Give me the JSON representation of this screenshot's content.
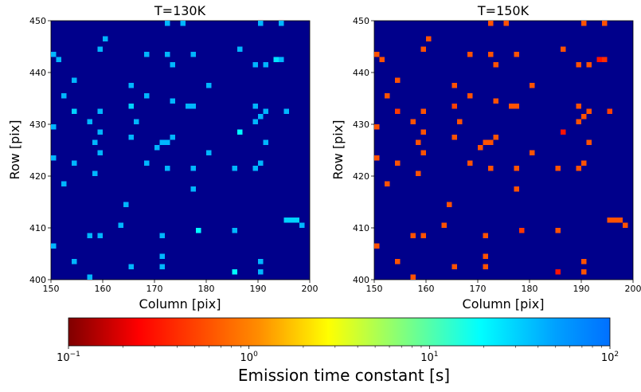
{
  "chart_data": [
    {
      "type": "heatmap",
      "title": "T=130K",
      "xlabel": "Column [pix]",
      "ylabel": "Row [pix]",
      "xlim": [
        150,
        200
      ],
      "ylim": [
        400,
        450
      ],
      "xticks": [
        150,
        160,
        170,
        180,
        190,
        200
      ],
      "yticks": [
        400,
        410,
        420,
        430,
        440,
        450
      ],
      "background": "#00008b",
      "cell_values_note_units": "seconds (emission time constant)",
      "cells": [
        {
          "x": 172,
          "y": 449,
          "v": 40
        },
        {
          "x": 175,
          "y": 449,
          "v": 40
        },
        {
          "x": 190,
          "y": 449,
          "v": 40
        },
        {
          "x": 194,
          "y": 449,
          "v": 40
        },
        {
          "x": 160,
          "y": 446,
          "v": 40
        },
        {
          "x": 159,
          "y": 444,
          "v": 40
        },
        {
          "x": 186,
          "y": 444,
          "v": 40
        },
        {
          "x": 150,
          "y": 443,
          "v": 40
        },
        {
          "x": 151,
          "y": 442,
          "v": 40
        },
        {
          "x": 168,
          "y": 443,
          "v": 40
        },
        {
          "x": 172,
          "y": 443,
          "v": 40
        },
        {
          "x": 177,
          "y": 443,
          "v": 40
        },
        {
          "x": 173,
          "y": 441,
          "v": 40
        },
        {
          "x": 189,
          "y": 441,
          "v": 40
        },
        {
          "x": 191,
          "y": 441,
          "v": 40
        },
        {
          "x": 193,
          "y": 442,
          "v": 25
        },
        {
          "x": 194,
          "y": 442,
          "v": 40
        },
        {
          "x": 154,
          "y": 438,
          "v": 40
        },
        {
          "x": 165,
          "y": 437,
          "v": 40
        },
        {
          "x": 180,
          "y": 437,
          "v": 40
        },
        {
          "x": 152,
          "y": 435,
          "v": 40
        },
        {
          "x": 168,
          "y": 435,
          "v": 40
        },
        {
          "x": 165,
          "y": 433,
          "v": 30
        },
        {
          "x": 173,
          "y": 434,
          "v": 40
        },
        {
          "x": 176,
          "y": 433,
          "v": 40
        },
        {
          "x": 177,
          "y": 433,
          "v": 40
        },
        {
          "x": 189,
          "y": 433,
          "v": 40
        },
        {
          "x": 191,
          "y": 432,
          "v": 40
        },
        {
          "x": 154,
          "y": 432,
          "v": 30
        },
        {
          "x": 159,
          "y": 432,
          "v": 40
        },
        {
          "x": 195,
          "y": 432,
          "v": 40
        },
        {
          "x": 190,
          "y": 431,
          "v": 40
        },
        {
          "x": 157,
          "y": 430,
          "v": 40
        },
        {
          "x": 150,
          "y": 429,
          "v": 40
        },
        {
          "x": 166,
          "y": 430,
          "v": 40
        },
        {
          "x": 189,
          "y": 430,
          "v": 40
        },
        {
          "x": 159,
          "y": 428,
          "v": 40
        },
        {
          "x": 186,
          "y": 428,
          "v": 20
        },
        {
          "x": 173,
          "y": 427,
          "v": 40
        },
        {
          "x": 165,
          "y": 427,
          "v": 40
        },
        {
          "x": 158,
          "y": 426,
          "v": 40
        },
        {
          "x": 172,
          "y": 426,
          "v": 40
        },
        {
          "x": 171,
          "y": 426,
          "v": 40
        },
        {
          "x": 191,
          "y": 426,
          "v": 40
        },
        {
          "x": 170,
          "y": 425,
          "v": 40
        },
        {
          "x": 159,
          "y": 424,
          "v": 40
        },
        {
          "x": 180,
          "y": 424,
          "v": 40
        },
        {
          "x": 150,
          "y": 423,
          "v": 40
        },
        {
          "x": 154,
          "y": 422,
          "v": 40
        },
        {
          "x": 168,
          "y": 422,
          "v": 40
        },
        {
          "x": 190,
          "y": 422,
          "v": 40
        },
        {
          "x": 158,
          "y": 420,
          "v": 40
        },
        {
          "x": 172,
          "y": 421,
          "v": 40
        },
        {
          "x": 177,
          "y": 421,
          "v": 40
        },
        {
          "x": 185,
          "y": 421,
          "v": 40
        },
        {
          "x": 189,
          "y": 421,
          "v": 40
        },
        {
          "x": 152,
          "y": 418,
          "v": 40
        },
        {
          "x": 177,
          "y": 417,
          "v": 40
        },
        {
          "x": 164,
          "y": 414,
          "v": 40
        },
        {
          "x": 195,
          "y": 411,
          "v": 30
        },
        {
          "x": 196,
          "y": 411,
          "v": 30
        },
        {
          "x": 197,
          "y": 411,
          "v": 30
        },
        {
          "x": 198,
          "y": 410,
          "v": 40
        },
        {
          "x": 163,
          "y": 410,
          "v": 40
        },
        {
          "x": 178,
          "y": 409,
          "v": 20
        },
        {
          "x": 185,
          "y": 409,
          "v": 40
        },
        {
          "x": 157,
          "y": 408,
          "v": 40
        },
        {
          "x": 159,
          "y": 408,
          "v": 40
        },
        {
          "x": 171,
          "y": 408,
          "v": 40
        },
        {
          "x": 150,
          "y": 406,
          "v": 40
        },
        {
          "x": 171,
          "y": 404,
          "v": 40
        },
        {
          "x": 154,
          "y": 403,
          "v": 40
        },
        {
          "x": 165,
          "y": 402,
          "v": 40
        },
        {
          "x": 171,
          "y": 402,
          "v": 40
        },
        {
          "x": 190,
          "y": 403,
          "v": 40
        },
        {
          "x": 185,
          "y": 401,
          "v": 20
        },
        {
          "x": 190,
          "y": 401,
          "v": 40
        },
        {
          "x": 157,
          "y": 400,
          "v": 40
        }
      ]
    },
    {
      "type": "heatmap",
      "title": "T=150K",
      "xlabel": "Column [pix]",
      "ylabel": "Row [pix]",
      "xlim": [
        150,
        200
      ],
      "ylim": [
        400,
        450
      ],
      "xticks": [
        150,
        160,
        170,
        180,
        190,
        200
      ],
      "yticks": [
        400,
        410,
        420,
        430,
        440,
        450
      ],
      "background": "#00008b",
      "cells": [
        {
          "x": 172,
          "y": 449,
          "v": 0.6
        },
        {
          "x": 175,
          "y": 449,
          "v": 0.6
        },
        {
          "x": 190,
          "y": 449,
          "v": 0.6
        },
        {
          "x": 194,
          "y": 449,
          "v": 0.6
        },
        {
          "x": 160,
          "y": 446,
          "v": 0.6
        },
        {
          "x": 159,
          "y": 444,
          "v": 0.6
        },
        {
          "x": 186,
          "y": 444,
          "v": 0.6
        },
        {
          "x": 150,
          "y": 443,
          "v": 0.6
        },
        {
          "x": 151,
          "y": 442,
          "v": 0.6
        },
        {
          "x": 168,
          "y": 443,
          "v": 0.6
        },
        {
          "x": 172,
          "y": 443,
          "v": 0.6
        },
        {
          "x": 177,
          "y": 443,
          "v": 0.6
        },
        {
          "x": 173,
          "y": 441,
          "v": 0.6
        },
        {
          "x": 189,
          "y": 441,
          "v": 0.6
        },
        {
          "x": 191,
          "y": 441,
          "v": 0.6
        },
        {
          "x": 193,
          "y": 442,
          "v": 0.3
        },
        {
          "x": 194,
          "y": 442,
          "v": 0.4
        },
        {
          "x": 154,
          "y": 438,
          "v": 0.6
        },
        {
          "x": 165,
          "y": 437,
          "v": 0.6
        },
        {
          "x": 180,
          "y": 437,
          "v": 0.6
        },
        {
          "x": 152,
          "y": 435,
          "v": 0.6
        },
        {
          "x": 168,
          "y": 435,
          "v": 0.6
        },
        {
          "x": 165,
          "y": 433,
          "v": 0.5
        },
        {
          "x": 173,
          "y": 434,
          "v": 0.6
        },
        {
          "x": 176,
          "y": 433,
          "v": 0.6
        },
        {
          "x": 177,
          "y": 433,
          "v": 0.6
        },
        {
          "x": 189,
          "y": 433,
          "v": 0.6
        },
        {
          "x": 191,
          "y": 432,
          "v": 0.6
        },
        {
          "x": 154,
          "y": 432,
          "v": 0.45
        },
        {
          "x": 159,
          "y": 432,
          "v": 0.6
        },
        {
          "x": 195,
          "y": 432,
          "v": 0.5
        },
        {
          "x": 190,
          "y": 431,
          "v": 0.6
        },
        {
          "x": 157,
          "y": 430,
          "v": 0.6
        },
        {
          "x": 150,
          "y": 429,
          "v": 0.6
        },
        {
          "x": 166,
          "y": 430,
          "v": 0.6
        },
        {
          "x": 189,
          "y": 430,
          "v": 0.6
        },
        {
          "x": 159,
          "y": 428,
          "v": 0.6
        },
        {
          "x": 186,
          "y": 428,
          "v": 0.3
        },
        {
          "x": 173,
          "y": 427,
          "v": 0.6
        },
        {
          "x": 165,
          "y": 427,
          "v": 0.6
        },
        {
          "x": 158,
          "y": 426,
          "v": 0.6
        },
        {
          "x": 172,
          "y": 426,
          "v": 0.6
        },
        {
          "x": 171,
          "y": 426,
          "v": 0.6
        },
        {
          "x": 191,
          "y": 426,
          "v": 0.6
        },
        {
          "x": 170,
          "y": 425,
          "v": 0.6
        },
        {
          "x": 159,
          "y": 424,
          "v": 0.6
        },
        {
          "x": 180,
          "y": 424,
          "v": 0.6
        },
        {
          "x": 150,
          "y": 423,
          "v": 0.6
        },
        {
          "x": 154,
          "y": 422,
          "v": 0.6
        },
        {
          "x": 168,
          "y": 422,
          "v": 0.6
        },
        {
          "x": 190,
          "y": 422,
          "v": 0.6
        },
        {
          "x": 158,
          "y": 420,
          "v": 0.6
        },
        {
          "x": 172,
          "y": 421,
          "v": 0.6
        },
        {
          "x": 177,
          "y": 421,
          "v": 0.6
        },
        {
          "x": 185,
          "y": 421,
          "v": 0.6
        },
        {
          "x": 189,
          "y": 421,
          "v": 0.6
        },
        {
          "x": 152,
          "y": 418,
          "v": 0.6
        },
        {
          "x": 177,
          "y": 417,
          "v": 0.6
        },
        {
          "x": 164,
          "y": 414,
          "v": 0.6
        },
        {
          "x": 195,
          "y": 411,
          "v": 0.6
        },
        {
          "x": 196,
          "y": 411,
          "v": 0.6
        },
        {
          "x": 197,
          "y": 411,
          "v": 0.6
        },
        {
          "x": 198,
          "y": 410,
          "v": 0.6
        },
        {
          "x": 163,
          "y": 410,
          "v": 0.6
        },
        {
          "x": 178,
          "y": 409,
          "v": 0.45
        },
        {
          "x": 185,
          "y": 409,
          "v": 0.6
        },
        {
          "x": 157,
          "y": 408,
          "v": 0.6
        },
        {
          "x": 159,
          "y": 408,
          "v": 0.6
        },
        {
          "x": 171,
          "y": 408,
          "v": 0.6
        },
        {
          "x": 150,
          "y": 406,
          "v": 0.6
        },
        {
          "x": 171,
          "y": 404,
          "v": 0.6
        },
        {
          "x": 154,
          "y": 403,
          "v": 0.6
        },
        {
          "x": 165,
          "y": 402,
          "v": 0.6
        },
        {
          "x": 171,
          "y": 402,
          "v": 0.6
        },
        {
          "x": 190,
          "y": 403,
          "v": 0.6
        },
        {
          "x": 185,
          "y": 401,
          "v": 0.3
        },
        {
          "x": 190,
          "y": 401,
          "v": 0.6
        },
        {
          "x": 157,
          "y": 400,
          "v": 0.6
        }
      ]
    }
  ],
  "colorbar": {
    "label": "Emission time constant [s]",
    "scale": "log",
    "min": 0.1,
    "max": 100,
    "tick_base": "10",
    "tick_exponents": [
      "−1",
      "0",
      "1",
      "2"
    ]
  }
}
